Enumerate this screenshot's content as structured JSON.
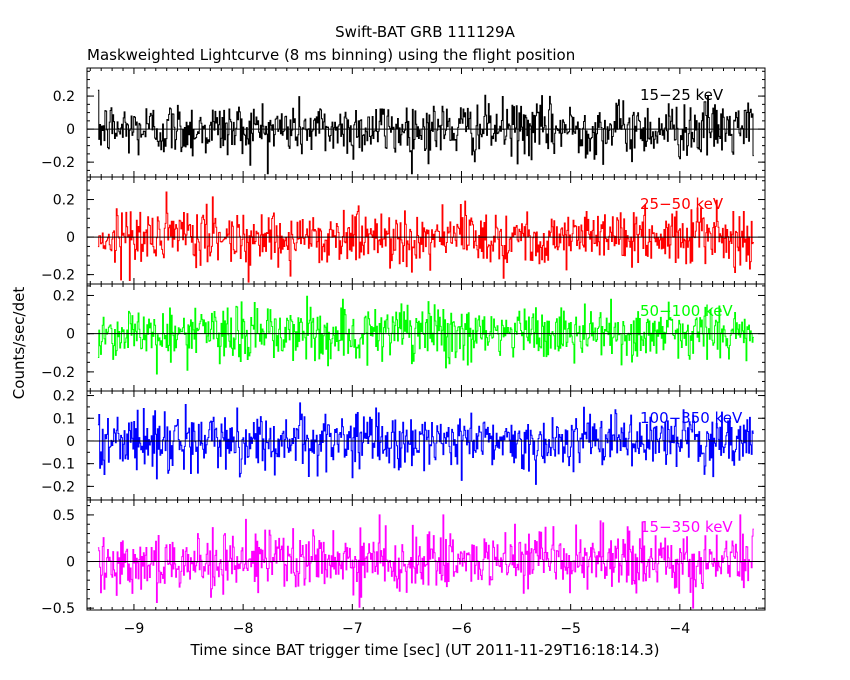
{
  "chart_data": {
    "type": "line",
    "title": "Swift-BAT GRB 111129A",
    "subtitle": "Maskweighted Lightcurve (8 ms binning) using the flight position",
    "xlabel": "Time since BAT trigger time [sec] (UT 2011-11-29T16:18:14.3)",
    "ylabel": "Counts/sec/det",
    "xlim": [
      -9.43,
      -3.22
    ],
    "x_range": [
      -9.33,
      -3.32
    ],
    "bin_width": 0.008,
    "x_ticks": [
      -9,
      -8,
      -7,
      -6,
      -5,
      -4
    ],
    "x_tick_labels": [
      "−9",
      "−8",
      "−7",
      "−6",
      "−5",
      "−4"
    ],
    "zero_line": true,
    "series": [
      {
        "name": "15−25 keV",
        "color": "#000000",
        "ylim": [
          -0.29,
          0.37
        ],
        "y_ticks": [
          -0.2,
          0,
          0.2
        ],
        "y_tick_labels": [
          "−0.2",
          "0",
          "0.2"
        ],
        "y_minor_step": 0.05,
        "typical_spread": 0.085,
        "max_abs": 0.27
      },
      {
        "name": "25−50 keV",
        "color": "#ff0000",
        "ylim": [
          -0.25,
          0.32
        ],
        "y_ticks": [
          -0.2,
          0,
          0.2
        ],
        "y_tick_labels": [
          "−0.2",
          "0",
          "0.2"
        ],
        "y_minor_step": 0.05,
        "typical_spread": 0.075,
        "max_abs": 0.24
      },
      {
        "name": "50−100 keV",
        "color": "#00ff00",
        "ylim": [
          -0.3,
          0.26
        ],
        "y_ticks": [
          -0.2,
          0,
          0.2
        ],
        "y_tick_labels": [
          "−0.2",
          "0",
          "0.2"
        ],
        "y_minor_step": 0.05,
        "typical_spread": 0.075,
        "max_abs": 0.28
      },
      {
        "name": "100−350 keV",
        "color": "#0000ff",
        "ylim": [
          -0.26,
          0.22
        ],
        "y_ticks": [
          -0.2,
          -0.1,
          0,
          0.1,
          0.2
        ],
        "y_tick_labels": [
          "−0.2",
          "−0.1",
          "0",
          "0.1",
          "0.2"
        ],
        "y_minor_step": 0.05,
        "typical_spread": 0.062,
        "max_abs": 0.24
      },
      {
        "name": "15−350 keV",
        "color": "#ff00ff",
        "ylim": [
          -0.52,
          0.66
        ],
        "y_ticks": [
          -0.5,
          0,
          0.5
        ],
        "y_tick_labels": [
          "−0.5",
          "0",
          "0.5"
        ],
        "y_minor_step": 0.1,
        "typical_spread": 0.16,
        "max_abs": 0.5
      }
    ]
  }
}
